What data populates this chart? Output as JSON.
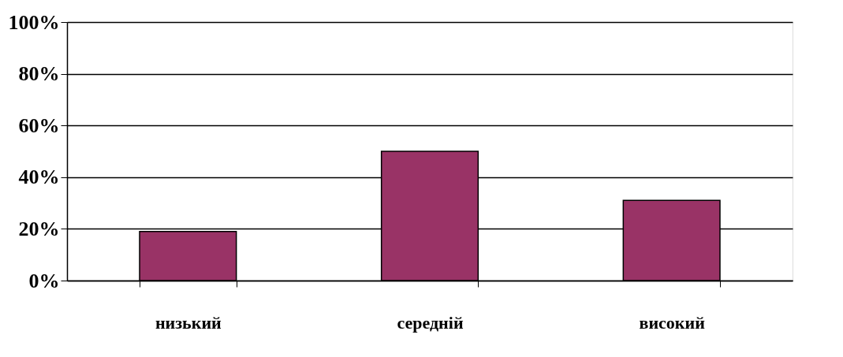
{
  "chart_data": {
    "type": "bar",
    "categories": [
      "низький",
      "середній",
      "високий"
    ],
    "values": [
      19,
      50,
      31
    ],
    "color": "#993366",
    "ylim": [
      0,
      100
    ],
    "yticks": [
      {
        "value": 0,
        "label": "0%"
      },
      {
        "value": 20,
        "label": "20%"
      },
      {
        "value": 40,
        "label": "40%"
      },
      {
        "value": 60,
        "label": "60%"
      },
      {
        "value": 80,
        "label": "80%"
      },
      {
        "value": 100,
        "label": "100%"
      }
    ],
    "grid": "y"
  }
}
